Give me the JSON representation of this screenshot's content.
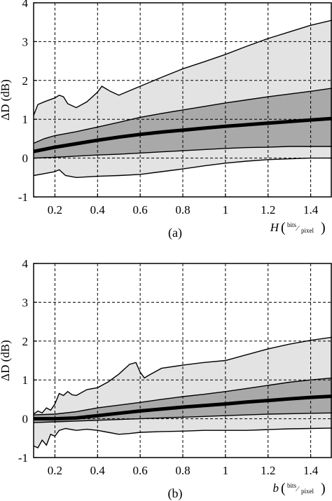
{
  "chart_data": [
    {
      "type": "area",
      "panel_label": "(a)",
      "ylabel": "ΔD (dB)",
      "xlabel_var": "H",
      "xlabel_unit_num": "bits",
      "xlabel_unit_den": "pixel",
      "xlim": [
        0.1,
        1.5
      ],
      "ylim": [
        -1,
        4
      ],
      "xticks": [
        0.2,
        0.4,
        0.6,
        0.8,
        1.0,
        1.2,
        1.4
      ],
      "xtick_labels": [
        "0.2",
        "0.4",
        "0.6",
        "0.8",
        "1",
        "1.2",
        "1.4"
      ],
      "yticks": [
        -1,
        0,
        1,
        2,
        3,
        4
      ],
      "ytick_labels": [
        "-1",
        "0",
        "1",
        "2",
        "3",
        "4"
      ],
      "grid": true,
      "bands": [
        {
          "role": "outer",
          "color": "#e3e3e3",
          "upper": [
            [
              0.1,
              1.1
            ],
            [
              0.12,
              1.38
            ],
            [
              0.15,
              1.45
            ],
            [
              0.2,
              1.55
            ],
            [
              0.22,
              1.62
            ],
            [
              0.24,
              1.58
            ],
            [
              0.26,
              1.4
            ],
            [
              0.3,
              1.3
            ],
            [
              0.35,
              1.45
            ],
            [
              0.4,
              1.7
            ],
            [
              0.42,
              1.85
            ],
            [
              0.46,
              1.72
            ],
            [
              0.5,
              1.62
            ],
            [
              0.6,
              1.85
            ],
            [
              0.7,
              2.08
            ],
            [
              0.8,
              2.3
            ],
            [
              0.9,
              2.48
            ],
            [
              1.0,
              2.67
            ],
            [
              1.1,
              2.88
            ],
            [
              1.2,
              3.08
            ],
            [
              1.3,
              3.25
            ],
            [
              1.4,
              3.42
            ],
            [
              1.5,
              3.55
            ]
          ],
          "lower": [
            [
              0.1,
              -0.45
            ],
            [
              0.15,
              -0.4
            ],
            [
              0.2,
              -0.35
            ],
            [
              0.22,
              -0.3
            ],
            [
              0.25,
              -0.45
            ],
            [
              0.3,
              -0.5
            ],
            [
              0.4,
              -0.47
            ],
            [
              0.5,
              -0.45
            ],
            [
              0.6,
              -0.42
            ],
            [
              0.7,
              -0.35
            ],
            [
              0.8,
              -0.28
            ],
            [
              0.9,
              -0.2
            ],
            [
              1.0,
              -0.13
            ],
            [
              1.1,
              -0.08
            ],
            [
              1.2,
              -0.04
            ],
            [
              1.3,
              -0.02
            ],
            [
              1.4,
              0.0
            ],
            [
              1.5,
              0.0
            ]
          ]
        },
        {
          "role": "inner",
          "color": "#a9a9a9",
          "upper": [
            [
              0.1,
              0.38
            ],
            [
              0.15,
              0.5
            ],
            [
              0.2,
              0.58
            ],
            [
              0.3,
              0.68
            ],
            [
              0.4,
              0.8
            ],
            [
              0.5,
              0.92
            ],
            [
              0.6,
              1.05
            ],
            [
              0.7,
              1.15
            ],
            [
              0.8,
              1.24
            ],
            [
              0.9,
              1.33
            ],
            [
              1.0,
              1.42
            ],
            [
              1.1,
              1.5
            ],
            [
              1.2,
              1.58
            ],
            [
              1.3,
              1.65
            ],
            [
              1.4,
              1.72
            ],
            [
              1.5,
              1.8
            ]
          ],
          "lower": [
            [
              0.1,
              0.0
            ],
            [
              0.2,
              0.02
            ],
            [
              0.3,
              0.05
            ],
            [
              0.4,
              0.08
            ],
            [
              0.5,
              0.1
            ],
            [
              0.6,
              0.13
            ],
            [
              0.7,
              0.16
            ],
            [
              0.8,
              0.19
            ],
            [
              0.9,
              0.22
            ],
            [
              1.0,
              0.25
            ],
            [
              1.1,
              0.27
            ],
            [
              1.2,
              0.28
            ],
            [
              1.3,
              0.3
            ],
            [
              1.4,
              0.3
            ],
            [
              1.5,
              0.3
            ]
          ]
        }
      ],
      "median": [
        [
          0.1,
          0.17
        ],
        [
          0.2,
          0.28
        ],
        [
          0.3,
          0.37
        ],
        [
          0.4,
          0.46
        ],
        [
          0.5,
          0.54
        ],
        [
          0.6,
          0.61
        ],
        [
          0.7,
          0.67
        ],
        [
          0.8,
          0.72
        ],
        [
          0.9,
          0.77
        ],
        [
          1.0,
          0.82
        ],
        [
          1.1,
          0.86
        ],
        [
          1.2,
          0.9
        ],
        [
          1.3,
          0.94
        ],
        [
          1.4,
          0.98
        ],
        [
          1.5,
          1.02
        ]
      ]
    },
    {
      "type": "area",
      "panel_label": "(b)",
      "ylabel": "ΔD (dB)",
      "xlabel_var": "b",
      "xlabel_unit_num": "bits",
      "xlabel_unit_den": "pixel",
      "xlim": [
        0.1,
        1.5
      ],
      "ylim": [
        -1,
        4
      ],
      "xticks": [
        0.2,
        0.4,
        0.6,
        0.8,
        1.0,
        1.2,
        1.4
      ],
      "xtick_labels": [
        "0.2",
        "0.4",
        "0.6",
        "0.8",
        "1",
        "1.2",
        "1.4"
      ],
      "yticks": [
        -1,
        0,
        1,
        2,
        3,
        4
      ],
      "ytick_labels": [
        "-1",
        "0",
        "1",
        "2",
        "3",
        "4"
      ],
      "grid": true,
      "bands": [
        {
          "role": "outer",
          "color": "#e3e3e3",
          "upper": [
            [
              0.1,
              0.12
            ],
            [
              0.12,
              0.2
            ],
            [
              0.14,
              0.15
            ],
            [
              0.16,
              0.28
            ],
            [
              0.18,
              0.22
            ],
            [
              0.2,
              0.38
            ],
            [
              0.22,
              0.65
            ],
            [
              0.24,
              0.6
            ],
            [
              0.26,
              0.7
            ],
            [
              0.28,
              0.62
            ],
            [
              0.3,
              0.6
            ],
            [
              0.35,
              0.75
            ],
            [
              0.4,
              0.8
            ],
            [
              0.45,
              0.95
            ],
            [
              0.5,
              1.15
            ],
            [
              0.55,
              1.4
            ],
            [
              0.58,
              1.45
            ],
            [
              0.6,
              1.2
            ],
            [
              0.62,
              1.05
            ],
            [
              0.64,
              1.12
            ],
            [
              0.7,
              1.3
            ],
            [
              0.8,
              1.38
            ],
            [
              0.9,
              1.45
            ],
            [
              1.0,
              1.5
            ],
            [
              1.1,
              1.65
            ],
            [
              1.2,
              1.8
            ],
            [
              1.3,
              1.92
            ],
            [
              1.4,
              2.02
            ],
            [
              1.5,
              2.1
            ]
          ],
          "lower": [
            [
              0.1,
              -0.7
            ],
            [
              0.12,
              -0.75
            ],
            [
              0.14,
              -0.55
            ],
            [
              0.16,
              -0.68
            ],
            [
              0.18,
              -0.4
            ],
            [
              0.2,
              -0.45
            ],
            [
              0.22,
              -0.3
            ],
            [
              0.25,
              -0.25
            ],
            [
              0.3,
              -0.3
            ],
            [
              0.35,
              -0.27
            ],
            [
              0.4,
              -0.3
            ],
            [
              0.45,
              -0.35
            ],
            [
              0.5,
              -0.4
            ],
            [
              0.55,
              -0.38
            ],
            [
              0.6,
              -0.35
            ],
            [
              0.7,
              -0.33
            ],
            [
              0.8,
              -0.32
            ],
            [
              0.9,
              -0.3
            ],
            [
              1.0,
              -0.3
            ],
            [
              1.1,
              -0.3
            ],
            [
              1.2,
              -0.28
            ],
            [
              1.3,
              -0.26
            ],
            [
              1.4,
              -0.25
            ],
            [
              1.5,
              -0.24
            ]
          ]
        },
        {
          "role": "inner",
          "color": "#a9a9a9",
          "upper": [
            [
              0.1,
              0.1
            ],
            [
              0.2,
              0.12
            ],
            [
              0.3,
              0.18
            ],
            [
              0.4,
              0.28
            ],
            [
              0.5,
              0.35
            ],
            [
              0.6,
              0.42
            ],
            [
              0.7,
              0.5
            ],
            [
              0.8,
              0.57
            ],
            [
              0.9,
              0.63
            ],
            [
              1.0,
              0.7
            ],
            [
              1.1,
              0.78
            ],
            [
              1.2,
              0.86
            ],
            [
              1.3,
              0.94
            ],
            [
              1.4,
              1.0
            ],
            [
              1.5,
              1.05
            ]
          ],
          "lower": [
            [
              0.1,
              -0.1
            ],
            [
              0.2,
              -0.08
            ],
            [
              0.3,
              -0.06
            ],
            [
              0.4,
              -0.04
            ],
            [
              0.5,
              -0.02
            ],
            [
              0.6,
              0.0
            ],
            [
              0.7,
              0.02
            ],
            [
              0.8,
              0.04
            ],
            [
              0.9,
              0.06
            ],
            [
              1.0,
              0.08
            ],
            [
              1.1,
              0.1
            ],
            [
              1.2,
              0.12
            ],
            [
              1.3,
              0.13
            ],
            [
              1.4,
              0.14
            ],
            [
              1.5,
              0.15
            ]
          ]
        }
      ],
      "median": [
        [
          0.1,
          0.0
        ],
        [
          0.2,
          0.0
        ],
        [
          0.3,
          0.02
        ],
        [
          0.4,
          0.08
        ],
        [
          0.5,
          0.14
        ],
        [
          0.6,
          0.2
        ],
        [
          0.7,
          0.25
        ],
        [
          0.8,
          0.3
        ],
        [
          0.9,
          0.34
        ],
        [
          1.0,
          0.38
        ],
        [
          1.1,
          0.43
        ],
        [
          1.2,
          0.47
        ],
        [
          1.3,
          0.51
        ],
        [
          1.4,
          0.55
        ],
        [
          1.5,
          0.58
        ]
      ]
    }
  ]
}
